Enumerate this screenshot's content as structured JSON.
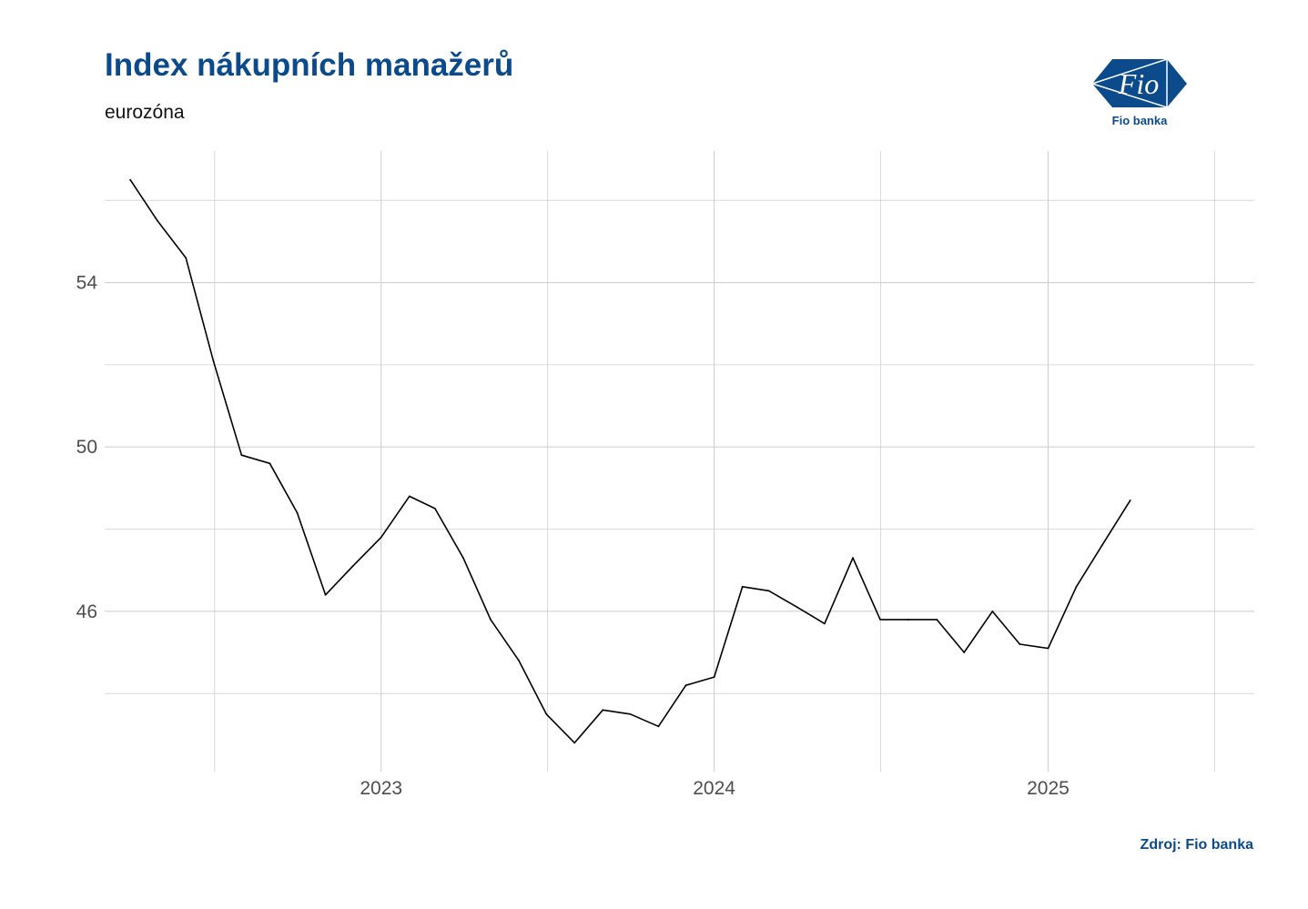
{
  "header": {
    "title": "Index nákupních manažerů",
    "subtitle": "eurozóna"
  },
  "logo": {
    "mark_text": "Fio",
    "caption": "Fio banka",
    "icon": "fio-banka-logo",
    "color": "#0b4a8b"
  },
  "footer": {
    "source": "Zdroj: Fio banka"
  },
  "colors": {
    "brand": "#0b4a8b",
    "line": "#000000",
    "grid": "#d0d0d0"
  },
  "chart_data": {
    "type": "line",
    "title": "Index nákupních manažerů",
    "subtitle": "eurozóna",
    "xlabel": "",
    "ylabel": "",
    "grid": true,
    "legend": "none",
    "xlim": [
      "2022-03-04",
      "2025-08-15"
    ],
    "ylim": [
      42.1,
      57.2
    ],
    "x_ticks": [
      {
        "date": "2023-01-01",
        "label": "2023"
      },
      {
        "date": "2024-01-01",
        "label": "2024"
      },
      {
        "date": "2025-01-01",
        "label": "2025"
      }
    ],
    "y_ticks": [
      46,
      50,
      54
    ],
    "series": [
      {
        "color": "#000000",
        "points": [
          {
            "x": "2022-04-01",
            "y": 56.5
          },
          {
            "x": "2022-05-01",
            "y": 55.5
          },
          {
            "x": "2022-06-01",
            "y": 54.6
          },
          {
            "x": "2022-07-01",
            "y": 52.1
          },
          {
            "x": "2022-08-01",
            "y": 49.8
          },
          {
            "x": "2022-09-01",
            "y": 49.6
          },
          {
            "x": "2022-10-01",
            "y": 48.4
          },
          {
            "x": "2022-11-01",
            "y": 46.4
          },
          {
            "x": "2022-12-01",
            "y": 47.1
          },
          {
            "x": "2023-01-01",
            "y": 47.8
          },
          {
            "x": "2023-02-01",
            "y": 48.8
          },
          {
            "x": "2023-03-01",
            "y": 48.5
          },
          {
            "x": "2023-04-01",
            "y": 47.3
          },
          {
            "x": "2023-05-01",
            "y": 45.8
          },
          {
            "x": "2023-06-01",
            "y": 44.8
          },
          {
            "x": "2023-07-01",
            "y": 43.5
          },
          {
            "x": "2023-08-01",
            "y": 42.8
          },
          {
            "x": "2023-09-01",
            "y": 43.6
          },
          {
            "x": "2023-10-01",
            "y": 43.5
          },
          {
            "x": "2023-11-01",
            "y": 43.2
          },
          {
            "x": "2023-12-01",
            "y": 44.2
          },
          {
            "x": "2024-01-01",
            "y": 44.4
          },
          {
            "x": "2024-02-01",
            "y": 46.6
          },
          {
            "x": "2024-03-01",
            "y": 46.5
          },
          {
            "x": "2024-04-01",
            "y": 46.1
          },
          {
            "x": "2024-05-01",
            "y": 45.7
          },
          {
            "x": "2024-06-01",
            "y": 47.3
          },
          {
            "x": "2024-07-01",
            "y": 45.8
          },
          {
            "x": "2024-08-01",
            "y": 45.8
          },
          {
            "x": "2024-09-01",
            "y": 45.8
          },
          {
            "x": "2024-10-01",
            "y": 45.0
          },
          {
            "x": "2024-11-01",
            "y": 46.0
          },
          {
            "x": "2024-12-01",
            "y": 45.2
          },
          {
            "x": "2025-01-01",
            "y": 45.1
          },
          {
            "x": "2025-02-01",
            "y": 46.6
          },
          {
            "x": "2025-03-01",
            "y": 47.6
          },
          {
            "x": "2025-04-01",
            "y": 48.7
          }
        ]
      }
    ]
  }
}
